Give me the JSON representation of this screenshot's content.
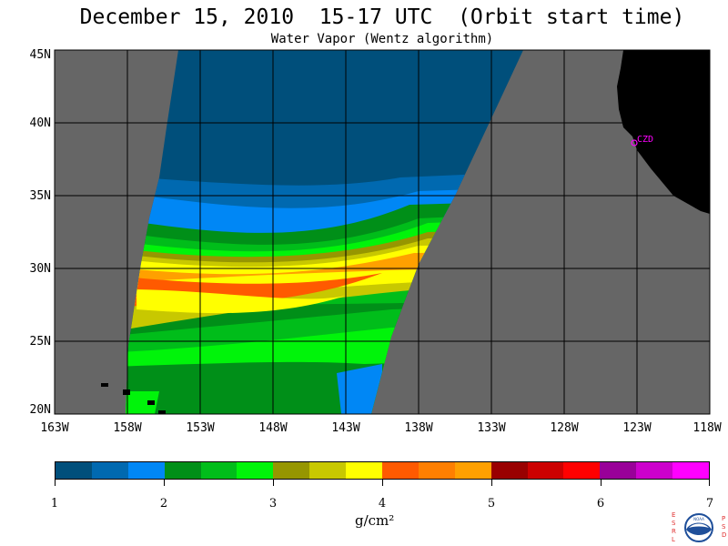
{
  "header": {
    "title": "December 15, 2010  15-17 UTC  (Orbit start time)",
    "subtitle": "Water Vapor (Wentz algorithm)"
  },
  "map": {
    "lat_labels": [
      "45N",
      "40N",
      "35N",
      "30N",
      "25N",
      "20N"
    ],
    "lon_labels": [
      "163W",
      "158W",
      "153W",
      "148W",
      "143W",
      "138W",
      "133W",
      "128W",
      "123W",
      "118W"
    ],
    "station_label": "CZD",
    "ocean_gap_color": "#666666",
    "land_color": "#000000"
  },
  "colorbar": {
    "units": "g/cm²",
    "tick_labels": [
      "1",
      "2",
      "3",
      "4",
      "5",
      "6",
      "7"
    ],
    "colors": [
      "#004f7b",
      "#0069b0",
      "#0087f5",
      "#008f18",
      "#00bd1a",
      "#00f40a",
      "#969600",
      "#c8c800",
      "#ffff00",
      "#ff5a00",
      "#ff7f00",
      "#ffa000",
      "#990000",
      "#cc0000",
      "#ff0000",
      "#990099",
      "#cc00cc",
      "#ff00ff"
    ]
  },
  "logo": {
    "left_letters": "ESRL",
    "right_letters": "PSD",
    "center_text": "NOAA"
  }
}
